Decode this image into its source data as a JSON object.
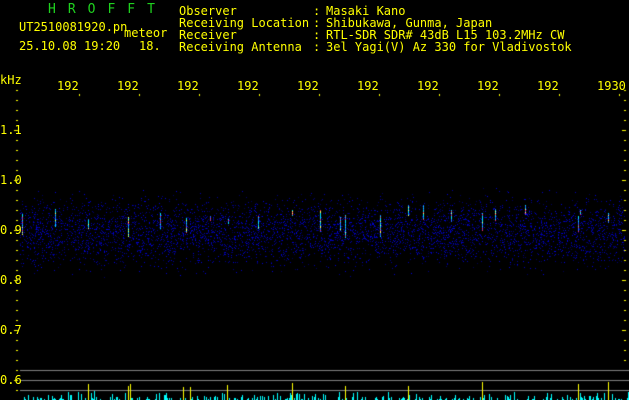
{
  "header": {
    "app_title": "HROFFT",
    "filename": "UT2510081920.pn",
    "mode": "meteor",
    "datetime": "25.10.08 19:20",
    "count": "18.",
    "fields": [
      {
        "label": "Observer",
        "value": "Masaki Kano"
      },
      {
        "label": "Receiving Location",
        "value": "Shibukawa, Gunma, Japan"
      },
      {
        "label": "Receiver",
        "value": "RTL-SDR SDR# 43dB L15 103.2MHz CW"
      },
      {
        "label": "Receiving Antenna",
        "value": "3el Yagi(V) Az 330 for Vladivostok"
      }
    ]
  },
  "axis": {
    "unit": "kHz",
    "time_labels": [
      "192",
      "192",
      "192",
      "192",
      "192",
      "192",
      "192",
      "192",
      "192",
      "1930"
    ],
    "freq_labels": [
      "1.1",
      "1.0",
      "0.9",
      "0.8",
      "0.7",
      "0.6"
    ]
  },
  "colors": {
    "text": "#ffff00",
    "title": "#1fd21f",
    "noise": "#0000cc",
    "echo_bars": "#00ffff",
    "lines": "#808080"
  }
}
